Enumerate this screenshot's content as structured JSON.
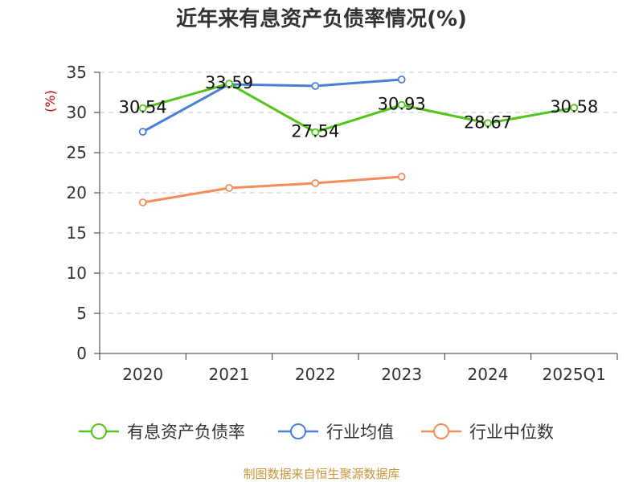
{
  "chart_data": {
    "type": "line",
    "title": "近年来有息资产负债率情况(%)",
    "ylabel": "(%)",
    "xlabel": "",
    "categories": [
      "2020",
      "2021",
      "2022",
      "2023",
      "2024",
      "2025Q1"
    ],
    "ylim": [
      0,
      35
    ],
    "yticks": [
      0,
      5,
      10,
      15,
      20,
      25,
      30,
      35
    ],
    "grid": true,
    "legend_position": "bottom",
    "series": [
      {
        "name": "有息资产负债率",
        "color": "#52c41a",
        "values": [
          30.54,
          33.59,
          27.54,
          30.93,
          28.67,
          30.58
        ],
        "labels": [
          "30.54",
          "33.59",
          "27.54",
          "30.93",
          "28.67",
          "30.58"
        ]
      },
      {
        "name": "行业均值",
        "color": "#4a7fd8",
        "values": [
          27.6,
          33.5,
          33.3,
          34.1,
          null,
          null
        ]
      },
      {
        "name": "行业中位数",
        "color": "#f58c5a",
        "values": [
          18.8,
          20.6,
          21.2,
          22.0,
          null,
          null
        ]
      }
    ]
  },
  "source": "制图数据来自恒生聚源数据库"
}
